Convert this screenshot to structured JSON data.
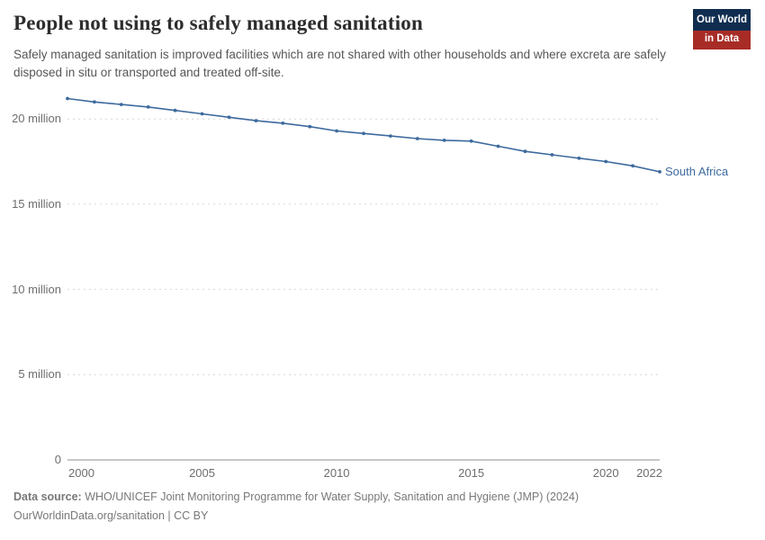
{
  "header": {
    "title": "People not using to safely managed sanitation",
    "subtitle": "Safely managed sanitation is improved facilities which are not shared with other households and where excreta are safely disposed in situ or transported and treated off-site.",
    "logo": {
      "line1": "Our World",
      "line2": "in Data"
    }
  },
  "chart_data": {
    "type": "line",
    "title": "People not using to safely managed sanitation",
    "x": [
      2000,
      2001,
      2002,
      2003,
      2004,
      2005,
      2006,
      2007,
      2008,
      2009,
      2010,
      2011,
      2012,
      2013,
      2014,
      2015,
      2016,
      2017,
      2018,
      2019,
      2020,
      2021,
      2022
    ],
    "series": [
      {
        "name": "South Africa",
        "color": "#3d6a9e",
        "values": [
          21.2,
          21.0,
          20.85,
          20.7,
          20.5,
          20.3,
          20.1,
          19.9,
          19.75,
          19.55,
          19.3,
          19.15,
          19.0,
          18.85,
          18.75,
          18.7,
          18.4,
          18.1,
          17.9,
          17.7,
          17.5,
          17.25,
          16.9
        ]
      }
    ],
    "value_unit": "million people",
    "xlabel": "",
    "ylabel": "",
    "xlim": [
      2000,
      2022
    ],
    "ylim": [
      0,
      21.7
    ],
    "yticks": [
      0,
      5,
      10,
      15,
      20
    ],
    "ytick_labels": [
      "0",
      "5 million",
      "10 million",
      "15 million",
      "20 million"
    ],
    "xticks": [
      2000,
      2005,
      2010,
      2015,
      2020,
      2022
    ],
    "xtick_labels": [
      "2000",
      "2005",
      "2010",
      "2015",
      "2020",
      "2022"
    ],
    "grid": "horizontal-dashed",
    "legend_position": "end-of-line"
  },
  "footer": {
    "source_label": "Data source:",
    "source_text": " WHO/UNICEF Joint Monitoring Programme for Water Supply, Sanitation and Hygiene (JMP) (2024)",
    "link_text": "OurWorldinData.org/sanitation | CC BY"
  },
  "colors": {
    "line": "#3d6a9e",
    "grid": "#d6d6d6",
    "axis": "#8f8f8f",
    "tick_text": "#6e6e6e",
    "logo_bg": "#102d50",
    "logo_accent": "#a82c26"
  }
}
